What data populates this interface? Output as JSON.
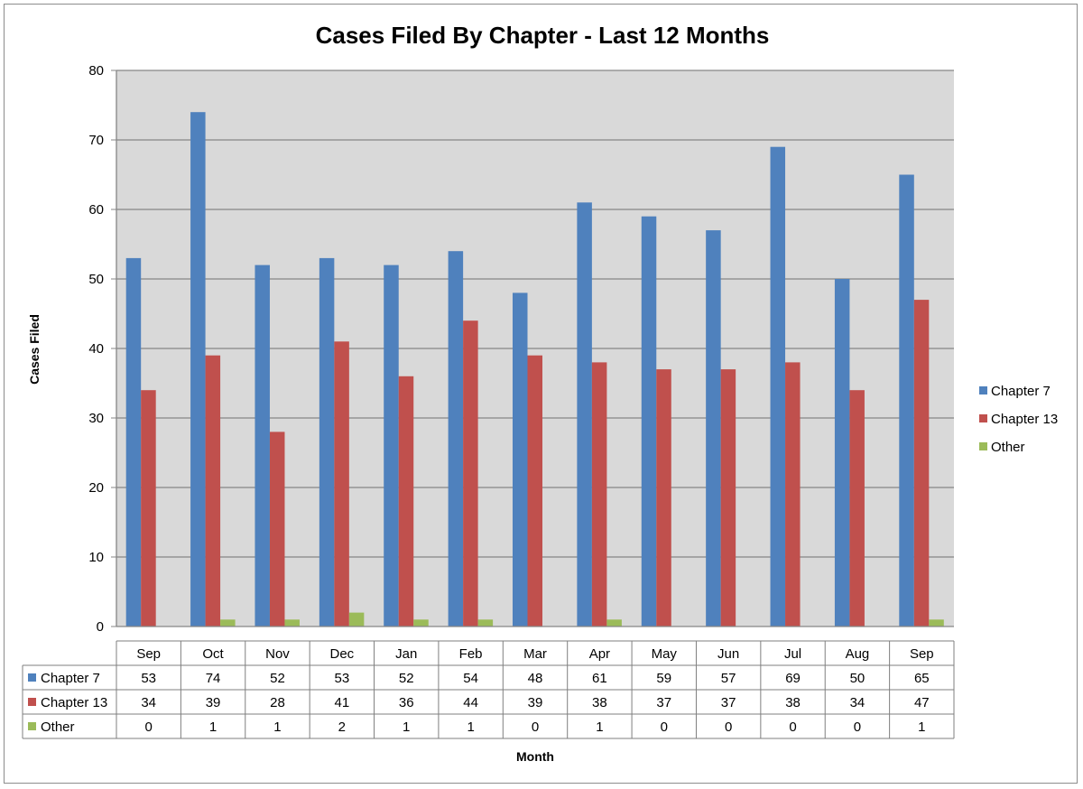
{
  "chart_data": {
    "type": "bar",
    "title": "Cases Filed By Chapter - Last 12 Months",
    "xlabel": "Month",
    "ylabel": "Cases Filed",
    "ylim": [
      0,
      80
    ],
    "yticks": [
      0,
      10,
      20,
      30,
      40,
      50,
      60,
      70,
      80
    ],
    "grid": true,
    "legend_position": "right",
    "data_table": true,
    "categories": [
      "Sep",
      "Oct",
      "Nov",
      "Dec",
      "Jan",
      "Feb",
      "Mar",
      "Apr",
      "May",
      "Jun",
      "Jul",
      "Aug",
      "Sep"
    ],
    "series": [
      {
        "name": "Chapter 7",
        "color": "#4F81BD",
        "values": [
          53,
          74,
          52,
          53,
          52,
          54,
          48,
          61,
          59,
          57,
          69,
          50,
          65
        ]
      },
      {
        "name": "Chapter 13",
        "color": "#C0504D",
        "values": [
          34,
          39,
          28,
          41,
          36,
          44,
          39,
          38,
          37,
          37,
          38,
          34,
          47
        ]
      },
      {
        "name": "Other",
        "color": "#9BBB59",
        "values": [
          0,
          1,
          1,
          2,
          1,
          1,
          0,
          1,
          0,
          0,
          0,
          0,
          1
        ]
      }
    ],
    "colors": {
      "plot_background": "#D9D9D9",
      "gridline": "#868686"
    }
  }
}
